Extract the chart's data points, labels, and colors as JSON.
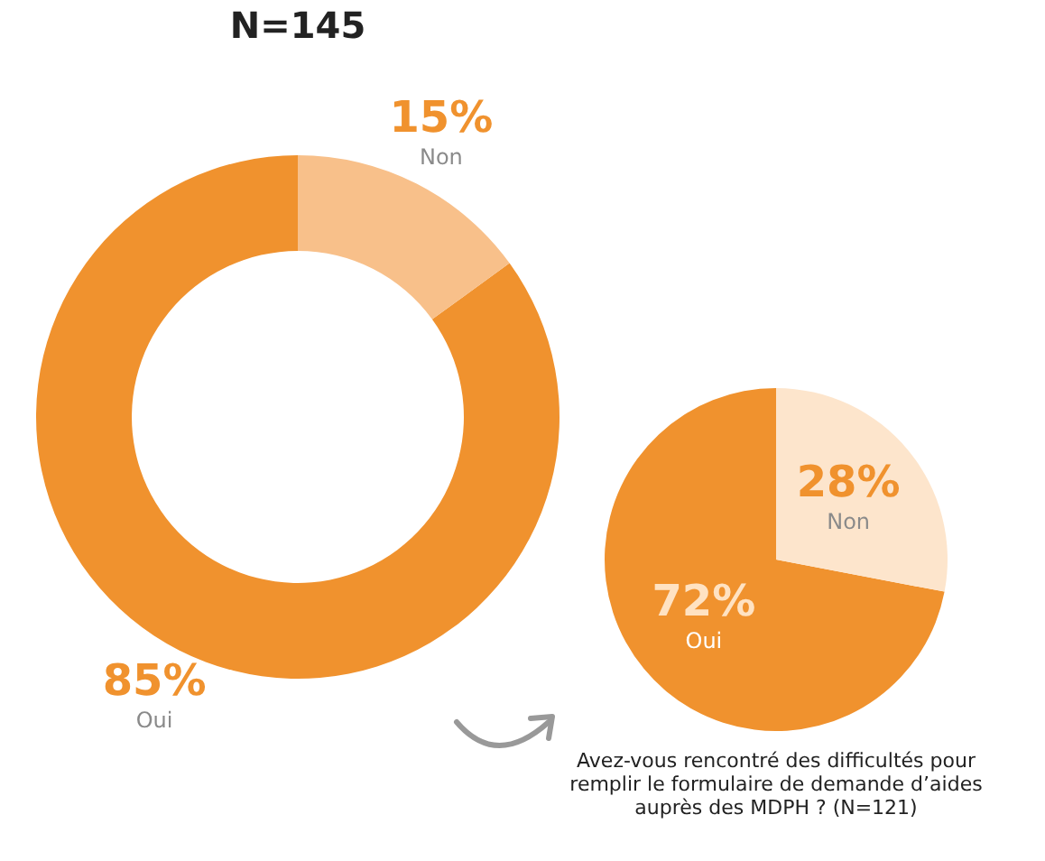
{
  "chart_data": [
    {
      "type": "donut",
      "title": "N=145",
      "categories": [
        "Oui",
        "Non"
      ],
      "values": [
        85,
        15
      ],
      "colors": [
        "#f0922e",
        "#f8c08a"
      ],
      "value_labels": [
        "85%",
        "15%"
      ]
    },
    {
      "type": "pie",
      "title": "Avez-vous rencontré des difficultés pour remplir le formulaire de demande d’aides auprès des MDPH ? (N=121)",
      "categories": [
        "Oui",
        "Non"
      ],
      "values": [
        72,
        28
      ],
      "colors": [
        "#f0922e",
        "#fde5cc"
      ],
      "value_labels": [
        "72%",
        "28%"
      ]
    }
  ]
}
